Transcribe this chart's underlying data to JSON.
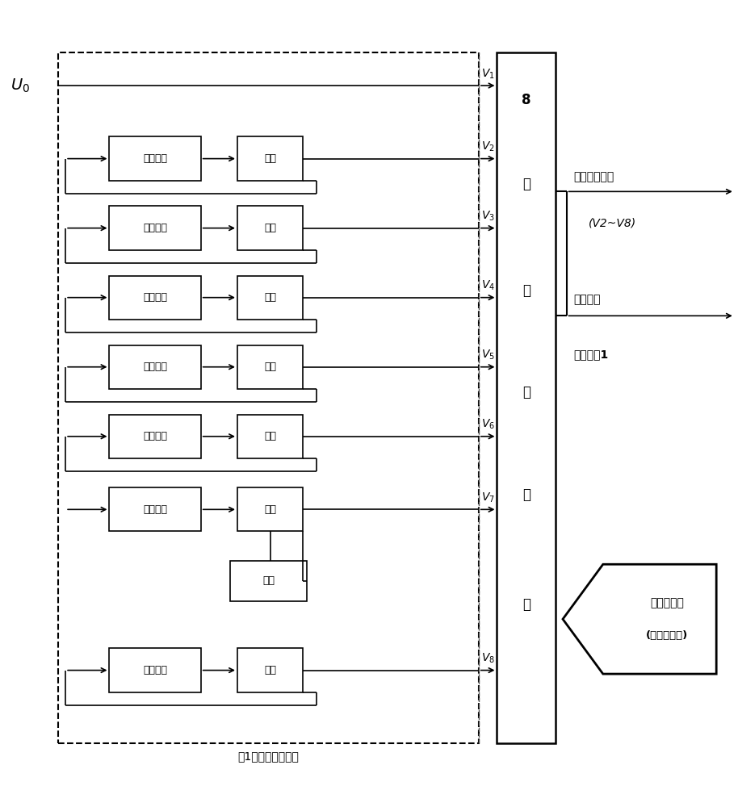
{
  "bg_color": "#ffffff",
  "line_color": "#000000",
  "dashed_line_color": "#555555",
  "fig_width": 9.14,
  "fig_height": 10.0,
  "dpi": 100,
  "box_labels_lowpass": "低通滤波",
  "box_labels_amp": "放大",
  "box_labels_zero": "调零",
  "mux_chars": [
    "8",
    "路",
    "选",
    "择",
    "开",
    "关"
  ],
  "output_text1": "某级放大输出",
  "output_text2": "(V2~V8)",
  "output_text3": "送至饱和",
  "output_text4": "判别单元1",
  "control_text1": "选择放大级",
  "control_text2": "(单片机控制)",
  "subtitle": "第1级选择放大电路"
}
